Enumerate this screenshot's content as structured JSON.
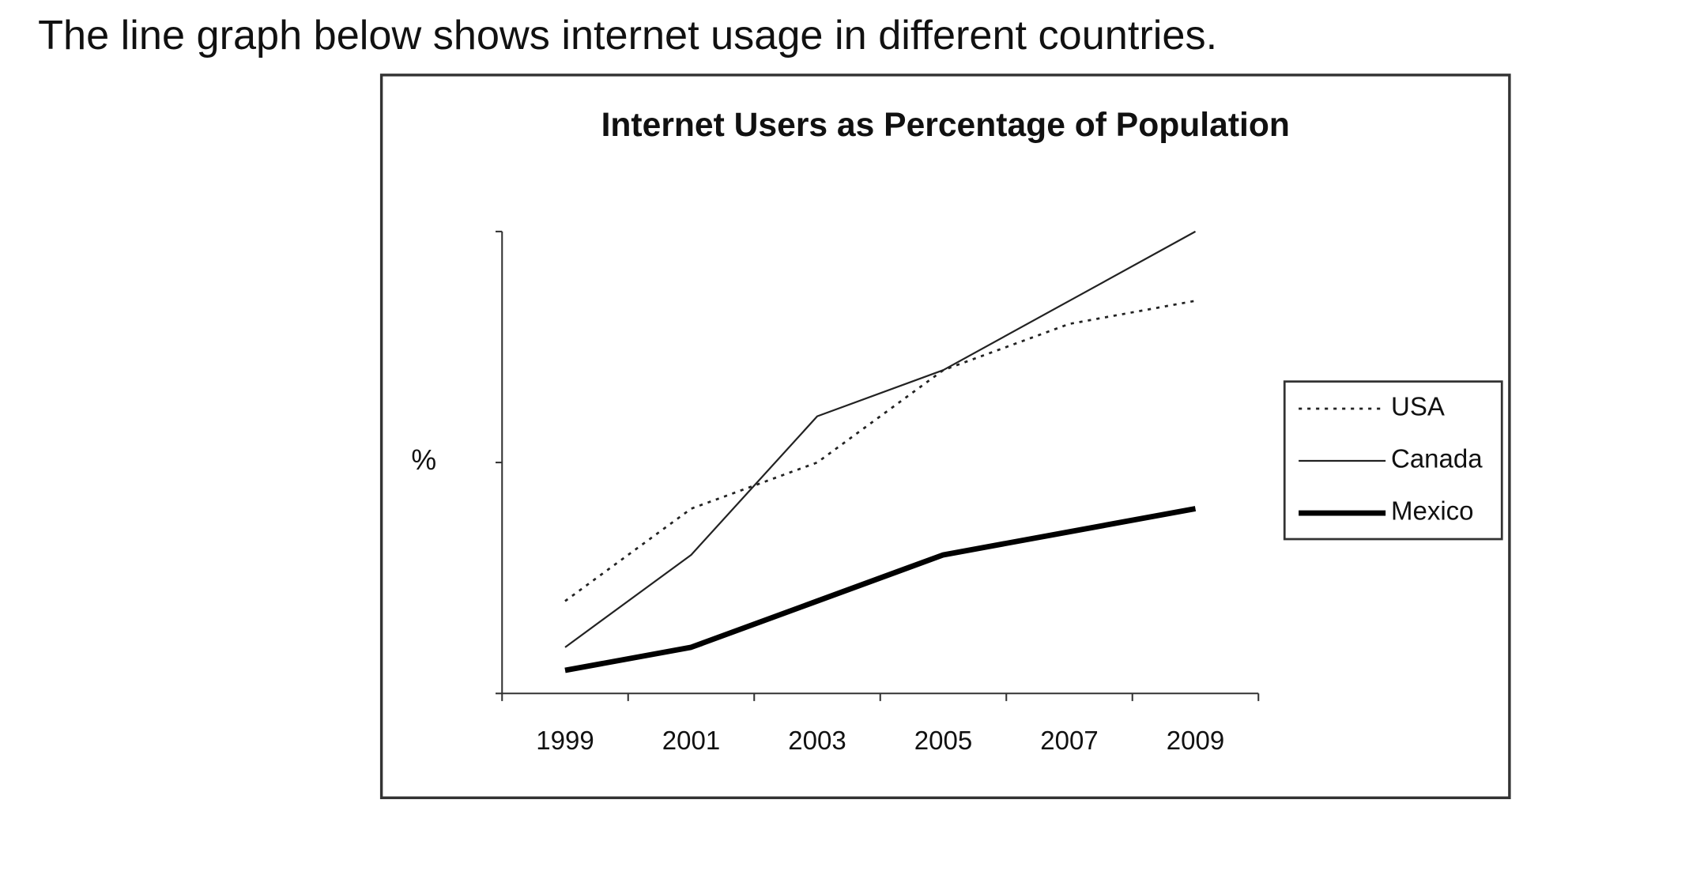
{
  "chart_data": {
    "type": "line",
    "caption": "The line graph below shows internet usage in different countries.",
    "title": "Internet Users as Percentage of Population",
    "ylabel": "%",
    "categories": [
      "1999",
      "2001",
      "2003",
      "2005",
      "2007",
      "2009"
    ],
    "series": [
      {
        "name": "USA",
        "color": "#222222",
        "linestyle": "dotted",
        "linewidth": 2,
        "values": [
          20,
          40,
          50,
          70,
          80,
          85
        ]
      },
      {
        "name": "Canada",
        "color": "#222222",
        "linestyle": "solid",
        "linewidth": 1.6,
        "values": [
          10,
          30,
          60,
          70,
          85,
          100
        ]
      },
      {
        "name": "Mexico",
        "color": "#000000",
        "linestyle": "solid",
        "linewidth": 5,
        "values": [
          5,
          10,
          20,
          30,
          35,
          40
        ]
      }
    ],
    "ylim": [
      0,
      100
    ],
    "yticks": [
      0,
      50,
      100
    ],
    "grid": false,
    "legend": "right"
  }
}
